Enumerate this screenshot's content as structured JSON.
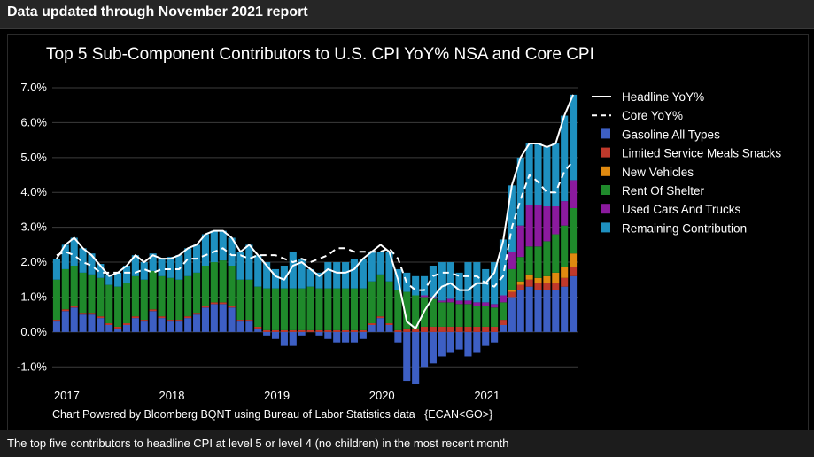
{
  "header": {
    "title": "Data updated through November 2021 report"
  },
  "footer": {
    "note": "The top five contributors to headline CPI at level 5 or level 4 (no children) in the most recent month"
  },
  "chart_data": {
    "type": "bar",
    "stacked": true,
    "title": "Top 5 Sub-Component Contributors to U.S. CPI YoY% NSA and Core CPI",
    "source": "Chart Powered by Bloomberg BQNT using Bureau of Labor Statistics data   {ECAN<GO>}",
    "ylim": [
      -1.5,
      7.0
    ],
    "yticks": [
      -1.0,
      0.0,
      1.0,
      2.0,
      3.0,
      4.0,
      5.0,
      6.0,
      7.0
    ],
    "ytick_labels": [
      "-1.0%",
      "0.0%",
      "1.0%",
      "2.0%",
      "3.0%",
      "4.0%",
      "5.0%",
      "6.0%",
      "7.0%"
    ],
    "xtick_labels": [
      "2017",
      "2018",
      "2019",
      "2020",
      "2021"
    ],
    "xtick_index": [
      0,
      12,
      24,
      36,
      48
    ],
    "legend_position": "right",
    "categories": [
      "2016-12",
      "2017-01",
      "2017-02",
      "2017-03",
      "2017-04",
      "2017-05",
      "2017-06",
      "2017-07",
      "2017-08",
      "2017-09",
      "2017-10",
      "2017-11",
      "2017-12",
      "2018-01",
      "2018-02",
      "2018-03",
      "2018-04",
      "2018-05",
      "2018-06",
      "2018-07",
      "2018-08",
      "2018-09",
      "2018-10",
      "2018-11",
      "2018-12",
      "2019-01",
      "2019-02",
      "2019-03",
      "2019-04",
      "2019-05",
      "2019-06",
      "2019-07",
      "2019-08",
      "2019-09",
      "2019-10",
      "2019-11",
      "2019-12",
      "2020-01",
      "2020-02",
      "2020-03",
      "2020-04",
      "2020-05",
      "2020-06",
      "2020-07",
      "2020-08",
      "2020-09",
      "2020-10",
      "2020-11",
      "2020-12",
      "2021-01",
      "2021-02",
      "2021-03",
      "2021-04",
      "2021-05",
      "2021-06",
      "2021-07",
      "2021-08",
      "2021-09",
      "2021-10",
      "2021-11"
    ],
    "lines": [
      {
        "name": "Headline YoY%",
        "style": "solid",
        "color": "#ffffff",
        "values": [
          2.1,
          2.5,
          2.7,
          2.4,
          2.2,
          1.9,
          1.6,
          1.7,
          1.9,
          2.2,
          2.0,
          2.2,
          2.1,
          2.1,
          2.2,
          2.4,
          2.5,
          2.8,
          2.9,
          2.9,
          2.7,
          2.3,
          2.5,
          2.2,
          1.9,
          1.6,
          1.5,
          1.9,
          2.0,
          1.8,
          1.6,
          1.8,
          1.7,
          1.7,
          1.8,
          2.1,
          2.3,
          2.5,
          2.3,
          1.5,
          0.3,
          0.1,
          0.6,
          1.0,
          1.3,
          1.4,
          1.2,
          1.2,
          1.4,
          1.4,
          1.7,
          2.6,
          4.2,
          5.0,
          5.4,
          5.4,
          5.3,
          5.4,
          6.2,
          6.8
        ]
      },
      {
        "name": "Core YoY%",
        "style": "dashed",
        "color": "#ffffff",
        "values": [
          2.2,
          2.3,
          2.2,
          2.0,
          1.9,
          1.7,
          1.7,
          1.7,
          1.7,
          1.7,
          1.8,
          1.7,
          1.8,
          1.8,
          1.8,
          2.1,
          2.1,
          2.2,
          2.3,
          2.4,
          2.2,
          2.2,
          2.1,
          2.2,
          2.2,
          2.2,
          2.1,
          2.0,
          2.1,
          2.0,
          2.1,
          2.2,
          2.4,
          2.4,
          2.3,
          2.3,
          2.3,
          2.3,
          2.4,
          2.1,
          1.4,
          1.2,
          1.2,
          1.6,
          1.7,
          1.7,
          1.6,
          1.6,
          1.6,
          1.4,
          1.3,
          1.6,
          3.0,
          3.8,
          4.5,
          4.3,
          4.0,
          4.0,
          4.6,
          4.9
        ]
      }
    ],
    "series": [
      {
        "name": "Gasoline All Types",
        "color": "#3d5fc4",
        "values": [
          0.3,
          0.6,
          0.7,
          0.5,
          0.5,
          0.4,
          0.2,
          0.1,
          0.2,
          0.4,
          0.3,
          0.6,
          0.4,
          0.3,
          0.3,
          0.4,
          0.5,
          0.7,
          0.8,
          0.8,
          0.7,
          0.3,
          0.3,
          0.1,
          -0.1,
          -0.2,
          -0.4,
          -0.4,
          -0.1,
          0.0,
          -0.1,
          -0.2,
          -0.3,
          -0.3,
          -0.3,
          -0.2,
          0.2,
          0.4,
          0.2,
          -0.3,
          -1.4,
          -1.5,
          -1.0,
          -0.9,
          -0.7,
          -0.6,
          -0.5,
          -0.7,
          -0.6,
          -0.4,
          -0.3,
          0.2,
          1.0,
          1.2,
          1.3,
          1.2,
          1.2,
          1.2,
          1.3,
          1.6
        ]
      },
      {
        "name": "Limited Service Meals  Snacks",
        "color": "#c0392b",
        "values": [
          0.05,
          0.05,
          0.05,
          0.05,
          0.05,
          0.05,
          0.05,
          0.05,
          0.05,
          0.05,
          0.05,
          0.05,
          0.05,
          0.05,
          0.05,
          0.05,
          0.05,
          0.05,
          0.05,
          0.05,
          0.05,
          0.05,
          0.05,
          0.05,
          0.05,
          0.05,
          0.05,
          0.05,
          0.05,
          0.05,
          0.05,
          0.05,
          0.05,
          0.05,
          0.05,
          0.05,
          0.05,
          0.05,
          0.05,
          0.05,
          0.1,
          0.1,
          0.15,
          0.15,
          0.15,
          0.15,
          0.15,
          0.15,
          0.15,
          0.15,
          0.15,
          0.15,
          0.15,
          0.15,
          0.2,
          0.2,
          0.2,
          0.2,
          0.25,
          0.25
        ]
      },
      {
        "name": "New Vehicles",
        "color": "#e08a10",
        "values": [
          0.0,
          0.0,
          0.0,
          0.0,
          0.0,
          0.0,
          0.0,
          0.0,
          0.0,
          0.0,
          0.0,
          0.0,
          0.0,
          0.0,
          0.0,
          0.0,
          0.0,
          0.0,
          0.0,
          0.0,
          0.0,
          0.0,
          0.0,
          0.0,
          0.0,
          0.0,
          0.0,
          0.0,
          0.0,
          0.0,
          0.0,
          0.0,
          0.0,
          0.0,
          0.0,
          0.0,
          0.0,
          0.0,
          0.0,
          0.0,
          0.0,
          0.0,
          0.0,
          0.0,
          0.0,
          0.0,
          0.0,
          0.0,
          0.0,
          0.0,
          0.0,
          0.0,
          0.05,
          0.1,
          0.15,
          0.15,
          0.2,
          0.3,
          0.3,
          0.4
        ]
      },
      {
        "name": "Rent Of Shelter",
        "color": "#1f8a2b",
        "values": [
          1.15,
          1.15,
          1.15,
          1.15,
          1.1,
          1.1,
          1.1,
          1.15,
          1.15,
          1.15,
          1.15,
          1.1,
          1.15,
          1.2,
          1.15,
          1.15,
          1.15,
          1.15,
          1.15,
          1.2,
          1.15,
          1.15,
          1.15,
          1.15,
          1.2,
          1.2,
          1.2,
          1.2,
          1.2,
          1.25,
          1.2,
          1.2,
          1.2,
          1.2,
          1.2,
          1.2,
          1.2,
          1.2,
          1.2,
          1.15,
          1.05,
          0.95,
          0.85,
          0.8,
          0.7,
          0.7,
          0.65,
          0.65,
          0.6,
          0.6,
          0.55,
          0.5,
          0.6,
          0.7,
          0.8,
          0.9,
          1.0,
          1.1,
          1.2,
          1.3
        ]
      },
      {
        "name": "Used Cars And Trucks",
        "color": "#8b1a9e",
        "values": [
          0.0,
          0.0,
          0.0,
          0.0,
          0.0,
          0.0,
          0.0,
          0.0,
          0.0,
          0.0,
          0.0,
          0.0,
          0.0,
          0.0,
          0.0,
          0.0,
          0.0,
          0.0,
          0.0,
          0.0,
          0.0,
          0.0,
          0.0,
          0.0,
          0.0,
          0.0,
          0.0,
          0.0,
          0.0,
          0.0,
          0.0,
          0.0,
          0.0,
          0.0,
          0.0,
          0.0,
          0.0,
          0.0,
          0.0,
          0.0,
          0.0,
          0.0,
          0.05,
          0.05,
          0.05,
          0.1,
          0.1,
          0.1,
          0.1,
          0.1,
          0.1,
          0.2,
          0.5,
          0.9,
          1.2,
          1.2,
          1.0,
          0.8,
          0.7,
          0.8
        ]
      },
      {
        "name": "Remaining Contribution",
        "color": "#1e90c0",
        "values": [
          0.6,
          0.7,
          0.8,
          0.7,
          0.6,
          0.4,
          0.3,
          0.4,
          0.5,
          0.6,
          0.5,
          0.5,
          0.5,
          0.6,
          0.7,
          0.8,
          0.8,
          0.9,
          0.9,
          0.85,
          0.8,
          0.8,
          1.0,
          0.9,
          0.75,
          0.55,
          0.65,
          1.05,
          0.85,
          0.5,
          0.45,
          0.75,
          0.75,
          0.75,
          0.85,
          0.85,
          0.85,
          0.65,
          0.85,
          0.6,
          0.55,
          0.55,
          0.55,
          0.9,
          1.1,
          1.05,
          0.8,
          1.1,
          1.15,
          0.95,
          1.2,
          1.6,
          1.9,
          1.95,
          1.75,
          1.75,
          1.7,
          1.8,
          2.45,
          2.45
        ]
      }
    ]
  }
}
